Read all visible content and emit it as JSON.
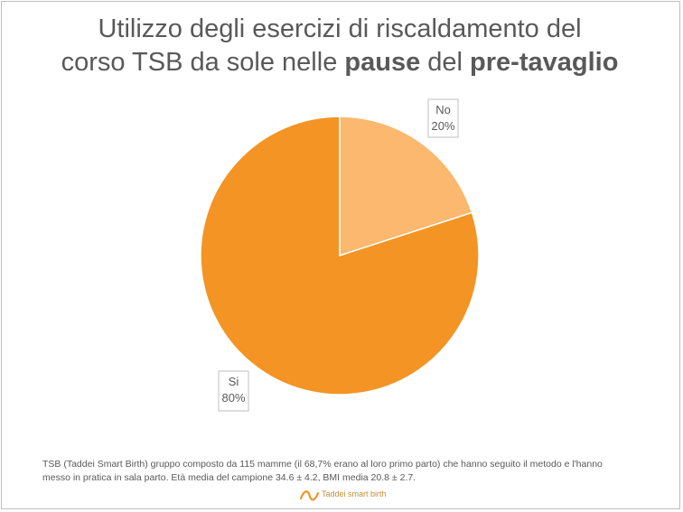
{
  "title": {
    "line1": "Utilizzo degli esercizi di riscaldamento del",
    "line2_part1": "corso TSB da sole nelle ",
    "line2_bold1": "pause",
    "line2_part2": " del ",
    "line2_bold2": "pre-tavaglio"
  },
  "chart_data": {
    "type": "pie",
    "title": "Utilizzo degli esercizi di riscaldamento del corso TSB da sole nelle pause del pre-tavaglio",
    "slices": [
      {
        "label": "No",
        "value": 20,
        "value_label": "20%",
        "color": "#fbb86e"
      },
      {
        "label": "Si",
        "value": 80,
        "value_label": "80%",
        "color": "#f39424"
      }
    ],
    "start_angle_deg": 0,
    "direction": "clockwise",
    "legend": "none"
  },
  "footnote": {
    "line1": "TSB (Taddei Smart Birth) gruppo composto da 115 mamme (il 68,7% erano al loro primo parto) che hanno seguito il metodo e l'hanno",
    "line2": "messo in pratica in sala parto. Età media del campione 34.6 ± 4.2, BMI media 20.8 ± 2.7."
  },
  "logo": {
    "text": "Taddei smart birth",
    "color": "#f39424"
  }
}
